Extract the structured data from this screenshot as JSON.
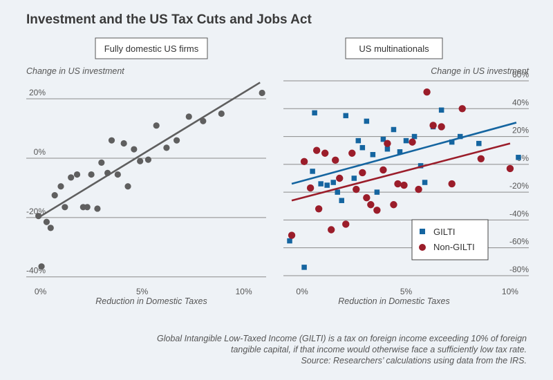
{
  "title": "Investment and the US Tax Cuts and Jobs Act",
  "footnote": {
    "line1": "Global Intangible Low-Taxed Income (GILTI) is a tax on foreign income exceeding 10% of foreign",
    "line2": "tangible capital, if that income would otherwise face a sufficiently low tax rate.",
    "source": "Source: Researchers’ calculations using data from the IRS."
  },
  "colors": {
    "gray": "#5f5f5f",
    "blue": "#1565a0",
    "red": "#9b1d2a",
    "grid": "#8a8a8a",
    "text": "#555555"
  },
  "chart_data": [
    {
      "type": "scatter",
      "title": "Fully domestic US firms",
      "ylabel": "Change in US investment",
      "xlabel": "Reduction in Domestic Taxes",
      "xlim": [
        -0.7,
        11.1
      ],
      "ylim": [
        -41,
        27
      ],
      "xticks": [
        0,
        5,
        10
      ],
      "xtick_labels": [
        "0%",
        "5%",
        "10%"
      ],
      "yticks": [
        20,
        0,
        -20,
        -40
      ],
      "ytick_labels": [
        "20%",
        "0%",
        "-20%",
        "-40%"
      ],
      "grid": true,
      "series": [
        {
          "points": [
            [
              -0.1,
              -19.5
            ],
            [
              0.05,
              -36.5
            ],
            [
              0.3,
              -21.5
            ],
            [
              0.5,
              -23.5
            ],
            [
              0.7,
              -12.5
            ],
            [
              1.0,
              -9.5
            ],
            [
              1.2,
              -16.5
            ],
            [
              1.5,
              -6.5
            ],
            [
              1.8,
              -5.5
            ],
            [
              2.1,
              -16.5
            ],
            [
              2.3,
              -16.5
            ],
            [
              2.5,
              -5.5
            ],
            [
              2.8,
              -17
            ],
            [
              3.0,
              -1.5
            ],
            [
              3.3,
              -5
            ],
            [
              3.5,
              6
            ],
            [
              3.8,
              -5.5
            ],
            [
              4.1,
              5
            ],
            [
              4.3,
              -9.5
            ],
            [
              4.6,
              3
            ],
            [
              4.9,
              -1
            ],
            [
              5.3,
              -0.5
            ],
            [
              5.7,
              11
            ],
            [
              6.2,
              3.5
            ],
            [
              6.7,
              6
            ],
            [
              7.3,
              14
            ],
            [
              8.0,
              12.5
            ],
            [
              8.9,
              15
            ],
            [
              10.9,
              22
            ]
          ],
          "fit": [
            [
              -0.1,
              -20
            ],
            [
              10.8,
              25.5
            ]
          ]
        }
      ]
    },
    {
      "type": "scatter",
      "title": "US multinationals",
      "ylabel": "Change in US investment",
      "xlabel": "Reduction in Domestic Taxes",
      "xlim": [
        -0.9,
        10.9
      ],
      "ylim": [
        -83,
        62
      ],
      "xticks": [
        0,
        5,
        10
      ],
      "xtick_labels": [
        "0%",
        "5%",
        "10%"
      ],
      "yticks": [
        60,
        40,
        20,
        0,
        -20,
        -40,
        -60,
        -80
      ],
      "ytick_labels": [
        "60%",
        "40%",
        "20%",
        "0%",
        "-20%",
        "-40%",
        "-60%",
        "-80%"
      ],
      "grid": true,
      "legend": "lower-right",
      "series": [
        {
          "name": "GILTI",
          "points": [
            [
              -0.6,
              -55
            ],
            [
              0.1,
              -74
            ],
            [
              0.5,
              -5
            ],
            [
              0.6,
              37
            ],
            [
              0.9,
              -14
            ],
            [
              1.2,
              -15
            ],
            [
              1.5,
              -13
            ],
            [
              1.7,
              -20
            ],
            [
              1.9,
              -26
            ],
            [
              2.1,
              35
            ],
            [
              2.5,
              -10
            ],
            [
              2.7,
              17
            ],
            [
              2.9,
              12
            ],
            [
              3.1,
              31
            ],
            [
              3.4,
              7
            ],
            [
              3.6,
              -20
            ],
            [
              3.9,
              18
            ],
            [
              4.1,
              11
            ],
            [
              4.4,
              25
            ],
            [
              4.7,
              9
            ],
            [
              5.0,
              17
            ],
            [
              5.4,
              20
            ],
            [
              5.7,
              -1
            ],
            [
              5.9,
              -13
            ],
            [
              6.3,
              27
            ],
            [
              6.7,
              39
            ],
            [
              7.2,
              16
            ],
            [
              7.6,
              20
            ],
            [
              8.5,
              15
            ],
            [
              10.4,
              5
            ]
          ],
          "fit": [
            [
              -0.5,
              -14
            ],
            [
              10.3,
              30
            ]
          ]
        },
        {
          "name": "Non-GILTI",
          "points": [
            [
              -0.5,
              -51
            ],
            [
              0.1,
              2
            ],
            [
              0.4,
              -17
            ],
            [
              0.7,
              10
            ],
            [
              0.8,
              -32
            ],
            [
              1.1,
              8
            ],
            [
              1.4,
              -47
            ],
            [
              1.6,
              3
            ],
            [
              1.8,
              -10
            ],
            [
              2.1,
              -43
            ],
            [
              2.4,
              8
            ],
            [
              2.6,
              -18
            ],
            [
              2.9,
              -6
            ],
            [
              3.1,
              -24
            ],
            [
              3.3,
              -29
            ],
            [
              3.6,
              -33
            ],
            [
              3.9,
              -4
            ],
            [
              4.1,
              15
            ],
            [
              4.4,
              -29
            ],
            [
              4.6,
              -14
            ],
            [
              4.9,
              -15
            ],
            [
              5.3,
              16
            ],
            [
              5.6,
              -18
            ],
            [
              6.0,
              52
            ],
            [
              6.3,
              28
            ],
            [
              6.7,
              27
            ],
            [
              7.2,
              -14
            ],
            [
              7.7,
              40
            ],
            [
              8.6,
              4
            ],
            [
              10.0,
              -3
            ]
          ],
          "fit": [
            [
              -0.5,
              -26
            ],
            [
              10.0,
              15
            ]
          ]
        }
      ]
    }
  ]
}
